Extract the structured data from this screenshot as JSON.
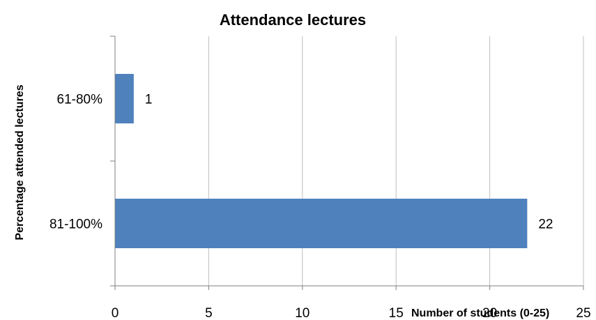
{
  "chart_data": {
    "type": "bar",
    "orientation": "horizontal",
    "title": "Attendance lectures",
    "xlabel": "Number of students (0-25)",
    "ylabel": "Percentage attended lectures",
    "categories": [
      "61-80%",
      "81-100%"
    ],
    "values": [
      1,
      22
    ],
    "data_labels": [
      "1",
      "22"
    ],
    "xlim": [
      0,
      25
    ],
    "x_ticks": [
      0,
      5,
      10,
      15,
      20,
      25
    ],
    "x_tick_labels": [
      "0",
      "5",
      "10",
      "15",
      "20",
      "25"
    ],
    "grid": true,
    "legend": "none",
    "bar_color": "#4F81BD",
    "grid_color": "#BFBFBF",
    "axis_color": "#7F7F7F"
  }
}
